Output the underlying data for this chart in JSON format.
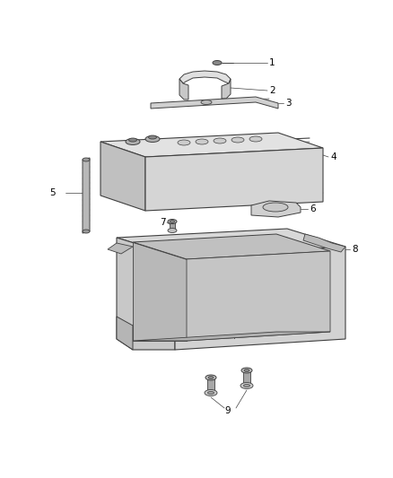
{
  "background_color": "#ffffff",
  "line_color": "#404040",
  "text_color": "#000000",
  "figsize": [
    4.38,
    5.33
  ],
  "dpi": 100
}
